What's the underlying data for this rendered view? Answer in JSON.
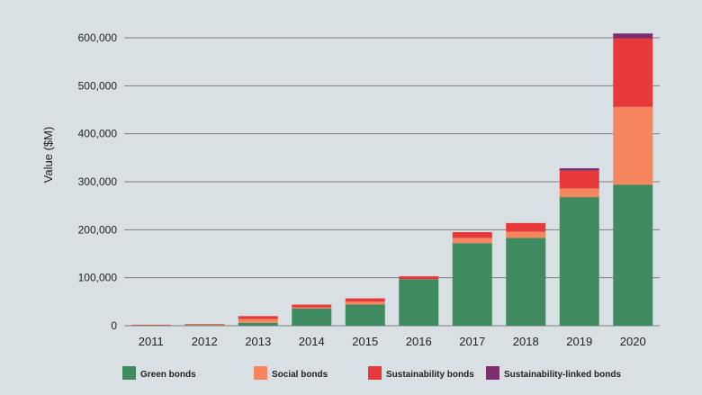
{
  "chart_data": {
    "type": "bar",
    "stacked": true,
    "ylabel": "Value ($M)",
    "xlabel": "",
    "ylim": [
      0,
      600000
    ],
    "yticks": [
      0,
      100000,
      200000,
      300000,
      400000,
      500000,
      600000
    ],
    "ytick_labels": [
      "0",
      "100,000",
      "200,000",
      "300,000",
      "400,000",
      "500,000",
      "600,000"
    ],
    "grid": "horizontal",
    "legend_position": "bottom",
    "categories": [
      "2011",
      "2012",
      "2013",
      "2014",
      "2015",
      "2016",
      "2017",
      "2018",
      "2019",
      "2020"
    ],
    "series": [
      {
        "name": "Green bonds",
        "color": "#3f8a5e",
        "values": [
          1000,
          1500,
          6000,
          36000,
          44000,
          97000,
          172000,
          183000,
          268000,
          294000
        ]
      },
      {
        "name": "Social bonds",
        "color": "#f4875f",
        "values": [
          500,
          1500,
          8000,
          2000,
          6000,
          0,
          11000,
          13000,
          18000,
          162000
        ]
      },
      {
        "name": "Sustainability bonds",
        "color": "#e8393a",
        "values": [
          500,
          500,
          6000,
          6000,
          7000,
          6000,
          12000,
          18000,
          37000,
          143000
        ]
      },
      {
        "name": "Sustainability-linked bonds",
        "color": "#7b2d6e",
        "values": [
          0,
          0,
          0,
          0,
          0,
          0,
          0,
          0,
          5000,
          10000
        ]
      }
    ]
  }
}
